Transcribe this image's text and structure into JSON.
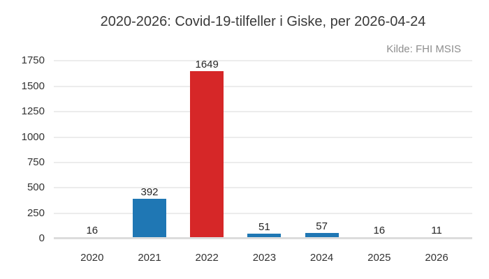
{
  "chart_data": {
    "type": "bar",
    "title": "2020-2026: Covid-19-tilfeller i Giske, per 2026-04-24",
    "annotation": "Kilde: FHI MSIS",
    "categories": [
      "2020",
      "2021",
      "2022",
      "2023",
      "2024",
      "2025",
      "2026"
    ],
    "values": [
      16,
      392,
      1649,
      51,
      57,
      16,
      11
    ],
    "value_labels": [
      "16",
      "392",
      "1649",
      "51",
      "57",
      "16",
      "11"
    ],
    "bar_colors": [
      "#1f77b4",
      "#1f77b4",
      "#d62728",
      "#1f77b4",
      "#1f77b4",
      "#1f77b4",
      "#1f77b4"
    ],
    "highlight_category": "2022",
    "y_ticks": [
      0,
      250,
      500,
      750,
      1000,
      1250,
      1500,
      1750
    ],
    "ylim": [
      0,
      1750
    ],
    "xlabel": "",
    "ylabel": "",
    "grid": "horizontal",
    "legend_position": "none"
  },
  "colors": {
    "background": "#ffffff",
    "bar_default": "#1f77b4",
    "bar_highlight": "#d62728",
    "gridline": "#ececec",
    "zero_line": "#dcdcdc",
    "title_text": "#3a3a3a",
    "tick_text": "#333333",
    "value_text": "#262626",
    "annotation_text": "#8e8e8e"
  }
}
